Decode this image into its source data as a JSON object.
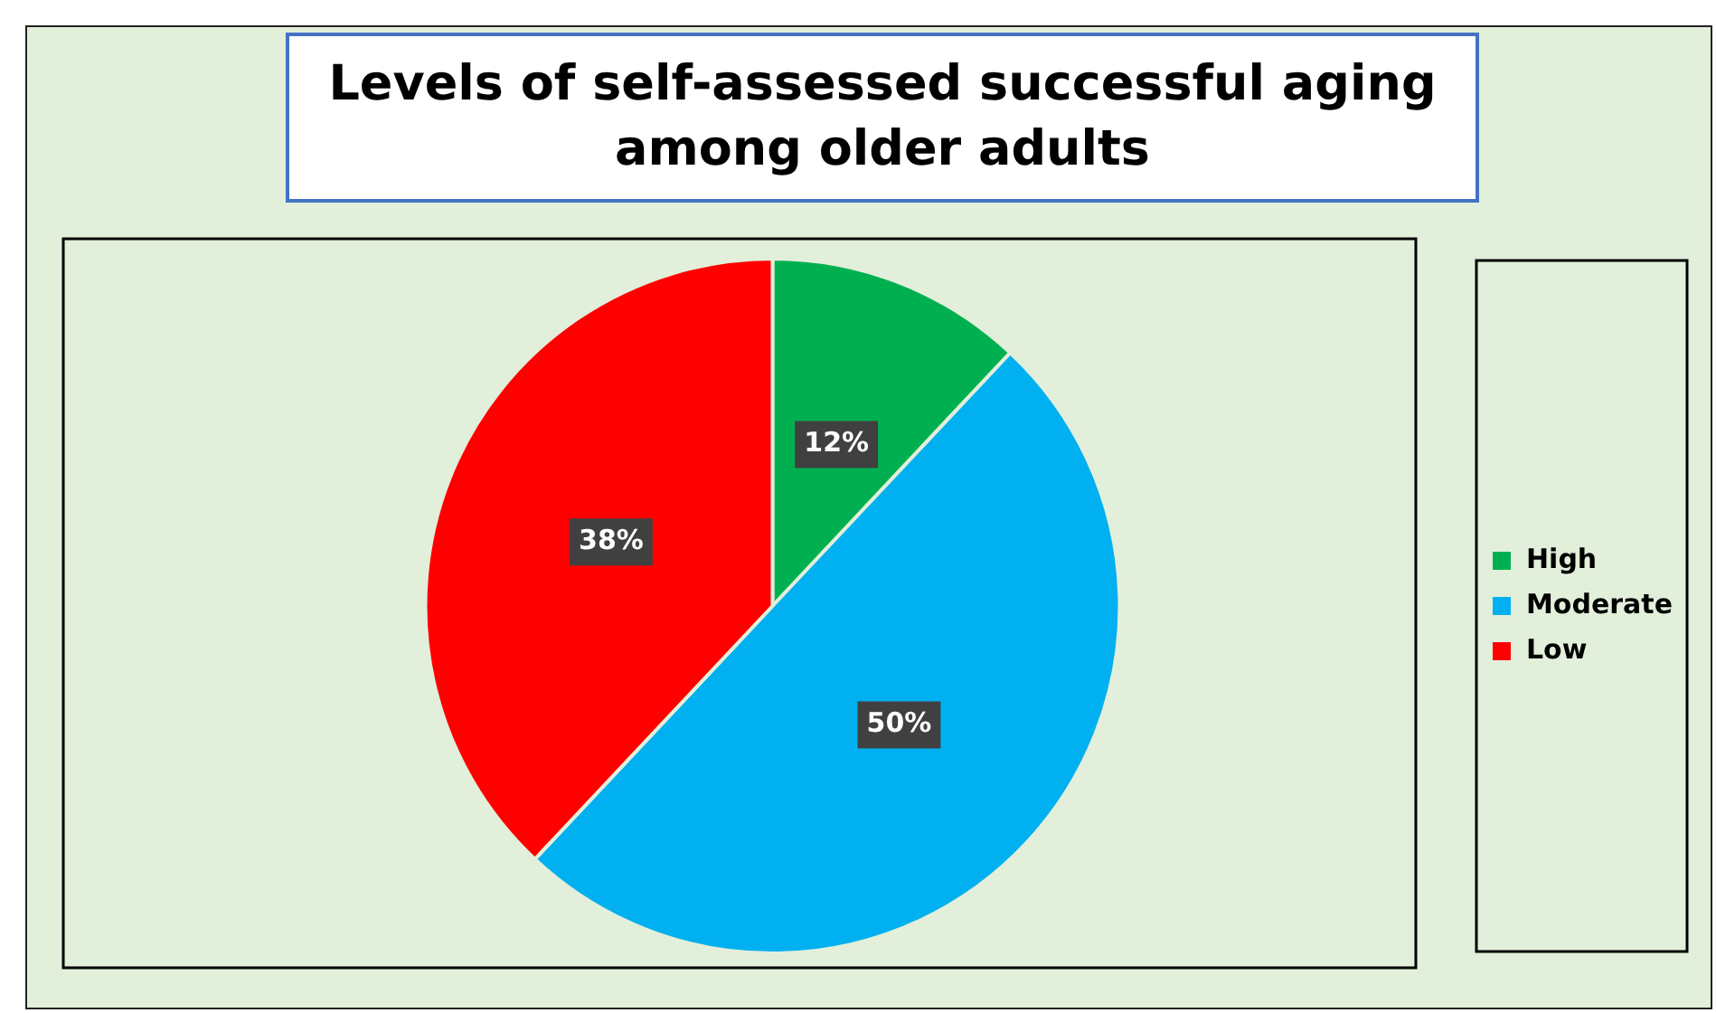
{
  "chart_data": {
    "type": "pie",
    "title": "Levels of self-assessed successful aging among older adults",
    "categories": [
      "High",
      "Moderate",
      "Low"
    ],
    "values": [
      12,
      50,
      38
    ],
    "colors": [
      "#00b050",
      "#00b0f0",
      "#ff0000"
    ],
    "value_labels": [
      "12%",
      "50%",
      "38%"
    ],
    "legend": "right"
  }
}
